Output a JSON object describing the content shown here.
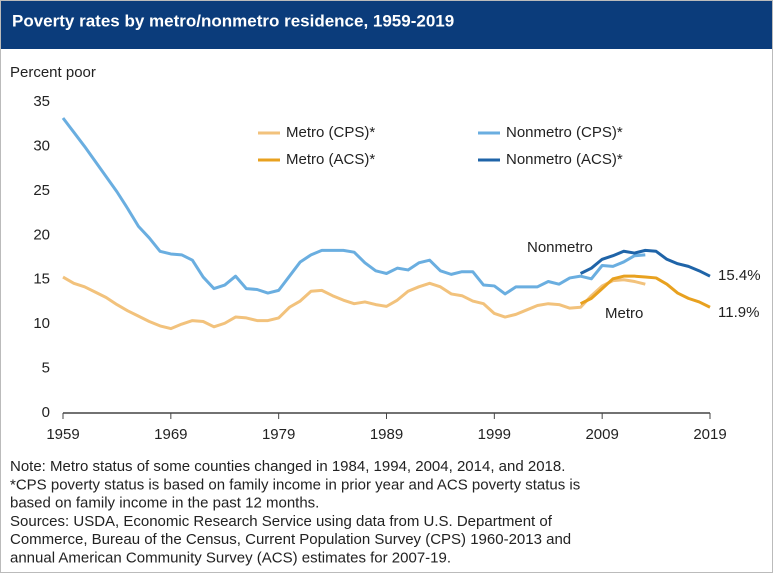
{
  "chart_data": {
    "type": "line",
    "title": "Poverty rates by metro/nonmetro residence, 1959-2019",
    "y_axis_label": "Percent poor",
    "xlim": [
      1959,
      2019
    ],
    "xticks": [
      1959,
      1969,
      1979,
      1989,
      1999,
      2009,
      2019
    ],
    "ylim": [
      0,
      35
    ],
    "yticks": [
      0,
      5,
      10,
      15,
      20,
      25,
      30,
      35
    ],
    "grid": false,
    "series": [
      {
        "name": "Metro (CPS)*",
        "color": "#f2c27c",
        "x": [
          1959,
          1960,
          1961,
          1962,
          1963,
          1964,
          1965,
          1966,
          1967,
          1968,
          1969,
          1970,
          1971,
          1972,
          1973,
          1974,
          1975,
          1976,
          1977,
          1978,
          1979,
          1980,
          1981,
          1982,
          1983,
          1984,
          1985,
          1986,
          1987,
          1988,
          1989,
          1990,
          1991,
          1992,
          1993,
          1994,
          1995,
          1996,
          1997,
          1998,
          1999,
          2000,
          2001,
          2002,
          2003,
          2004,
          2005,
          2006,
          2007,
          2008,
          2009,
          2010,
          2011,
          2012,
          2013
        ],
        "values": [
          15.3,
          14.6,
          14.2,
          13.6,
          13.0,
          12.2,
          11.5,
          10.9,
          10.3,
          9.8,
          9.5,
          10.0,
          10.4,
          10.3,
          9.7,
          10.1,
          10.8,
          10.7,
          10.4,
          10.4,
          10.7,
          11.9,
          12.6,
          13.7,
          13.8,
          13.2,
          12.7,
          12.3,
          12.5,
          12.2,
          12.0,
          12.7,
          13.7,
          14.2,
          14.6,
          14.2,
          13.4,
          13.2,
          12.6,
          12.3,
          11.2,
          10.8,
          11.1,
          11.6,
          12.1,
          12.3,
          12.2,
          11.8,
          11.9,
          13.2,
          14.3,
          14.9,
          15.0,
          14.8,
          14.5
        ]
      },
      {
        "name": "Metro (ACS)*",
        "color": "#e8a11f",
        "x": [
          2007,
          2008,
          2009,
          2010,
          2011,
          2012,
          2013,
          2014,
          2015,
          2016,
          2017,
          2018,
          2019
        ],
        "values": [
          12.3,
          12.9,
          14.0,
          15.1,
          15.4,
          15.4,
          15.3,
          15.2,
          14.5,
          13.5,
          12.9,
          12.5,
          11.9
        ]
      },
      {
        "name": "Nonmetro (CPS)*",
        "color": "#6aaee0",
        "x": [
          1959,
          1960,
          1961,
          1962,
          1963,
          1964,
          1965,
          1966,
          1967,
          1968,
          1969,
          1970,
          1971,
          1972,
          1973,
          1974,
          1975,
          1976,
          1977,
          1978,
          1979,
          1980,
          1981,
          1982,
          1983,
          1984,
          1985,
          1986,
          1987,
          1988,
          1989,
          1990,
          1991,
          1992,
          1993,
          1994,
          1995,
          1996,
          1997,
          1998,
          1999,
          2000,
          2001,
          2002,
          2003,
          2004,
          2005,
          2006,
          2007,
          2008,
          2009,
          2010,
          2011,
          2012,
          2013
        ],
        "values": [
          33.2,
          31.6,
          30.0,
          28.3,
          26.6,
          24.9,
          23.0,
          21.0,
          19.7,
          18.2,
          17.9,
          17.8,
          17.2,
          15.3,
          14.0,
          14.4,
          15.4,
          14.0,
          13.9,
          13.5,
          13.8,
          15.4,
          17.0,
          17.8,
          18.3,
          18.3,
          18.3,
          18.1,
          16.9,
          16.0,
          15.7,
          16.3,
          16.1,
          16.9,
          17.2,
          16.0,
          15.6,
          15.9,
          15.9,
          14.4,
          14.3,
          13.4,
          14.2,
          14.2,
          14.2,
          14.8,
          14.5,
          15.2,
          15.4,
          15.1,
          16.6,
          16.5,
          17.0,
          17.7,
          17.8
        ]
      },
      {
        "name": "Nonmetro (ACS)*",
        "color": "#1f64a8",
        "x": [
          2007,
          2008,
          2009,
          2010,
          2011,
          2012,
          2013,
          2014,
          2015,
          2016,
          2017,
          2018,
          2019
        ],
        "values": [
          15.7,
          16.3,
          17.3,
          17.7,
          18.2,
          18.0,
          18.3,
          18.2,
          17.3,
          16.8,
          16.5,
          16.0,
          15.4
        ]
      }
    ],
    "annotations": [
      "Nonmetro",
      "Metro",
      "15.4%",
      "11.9%"
    ],
    "notes": [
      "Note: Metro status of some counties changed in 1984, 1994, 2004, 2014, and 2018.",
      "*CPS poverty status is based on family income in prior year and ACS poverty status is",
      "based on family income in the past 12 months.",
      "Sources: USDA, Economic Research Service using data from U.S. Department of",
      "Commerce, Bureau of the Census, Current Population Survey (CPS) 1960-2013 and",
      "annual American Community Survey (ACS) estimates for 2007-19."
    ]
  }
}
